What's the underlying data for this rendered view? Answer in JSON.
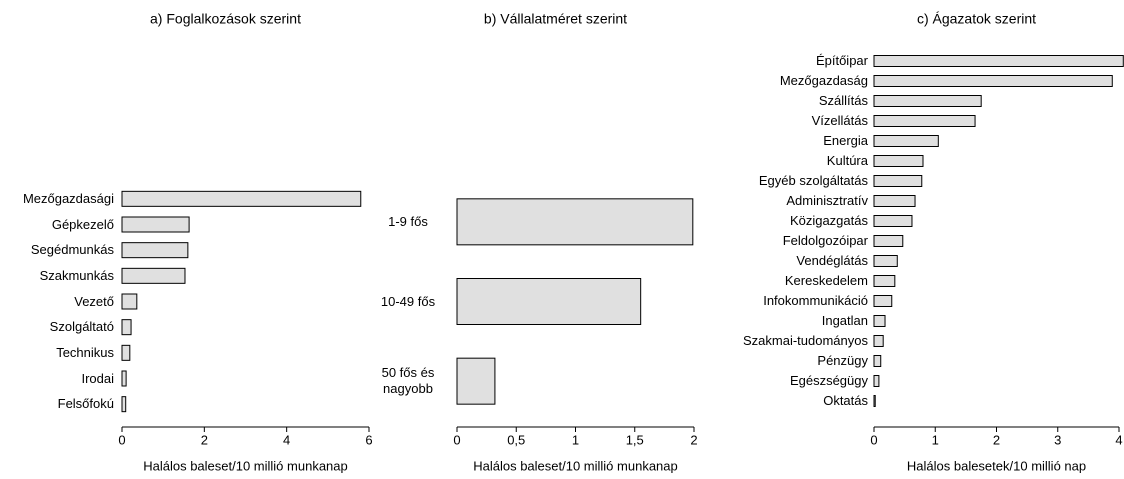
{
  "chart_data": [
    {
      "type": "bar",
      "orientation": "horizontal",
      "title": "a) Foglalkozások szerint",
      "xlabel": "Halálos baleset/10 millió munkanap",
      "categories": [
        "Mezőgazdasági",
        "Gépkezelő",
        "Segédmunkás",
        "Szakmunkás",
        "Vezető",
        "Szolgáltató",
        "Technikus",
        "Irodai",
        "Felsőfokú"
      ],
      "values": [
        5.8,
        1.63,
        1.6,
        1.53,
        0.36,
        0.22,
        0.19,
        0.1,
        0.09
      ],
      "color": "#e0e0e0",
      "xlim": [
        0,
        6
      ],
      "xticks": [
        0,
        2,
        4,
        6
      ]
    },
    {
      "type": "bar",
      "orientation": "horizontal",
      "title": "b) Vállalatméret szerint",
      "xlabel": "Halálos baleset/10 millió munkanap",
      "categories": [
        "1-9 fős",
        "10-49 fős",
        "50 fős és nagyobb"
      ],
      "values": [
        1.99,
        1.55,
        0.32
      ],
      "color": "#e0e0e0",
      "xlim": [
        0,
        2
      ],
      "xticks": [
        0,
        {
          "value": 0.5,
          "label": "0,5"
        },
        1,
        {
          "value": 1.5,
          "label": "1,5"
        },
        2
      ]
    },
    {
      "type": "bar",
      "orientation": "horizontal",
      "title": "c) Ágazatok szerint",
      "xlabel": "Halálos balesetek/10 millió nap",
      "categories": [
        "Építőipar",
        "Mezőgazdaság",
        "Szállítás",
        "Vízellátás",
        "Energia",
        "Kultúra",
        "Egyéb szolgáltatás",
        "Adminisztratív",
        "Közigazgatás",
        "Feldolgozóipar",
        "Vendéglátás",
        "Kereskedelem",
        "Infokommunikáció",
        "Ingatlan",
        "Szakmai-tudományos",
        "Pénzügy",
        "Egészségügy",
        "Oktatás"
      ],
      "values": [
        4.07,
        3.89,
        1.75,
        1.65,
        1.05,
        0.8,
        0.78,
        0.67,
        0.62,
        0.47,
        0.38,
        0.34,
        0.29,
        0.18,
        0.15,
        0.11,
        0.08,
        0.02
      ],
      "color": "#e0e0e0",
      "xlim": [
        0,
        4
      ],
      "xticks": [
        0,
        1,
        2,
        3,
        4
      ]
    }
  ]
}
